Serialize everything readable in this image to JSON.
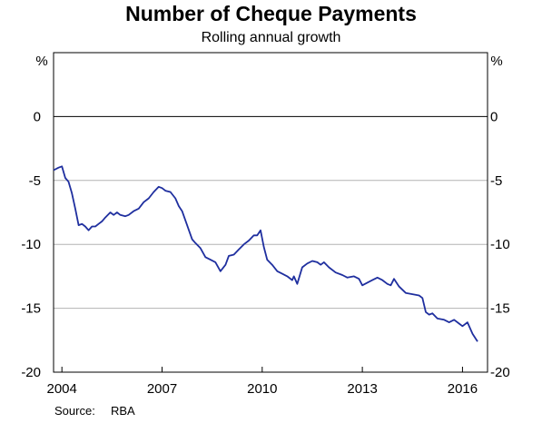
{
  "chart_data": {
    "type": "line",
    "title": "Number of Cheque Payments",
    "subtitle": "Rolling annual growth",
    "left_unit": "%",
    "right_unit": "%",
    "ylim": [
      -20,
      5
    ],
    "yticks": [
      0,
      -5,
      -10,
      -15,
      -20
    ],
    "xlim": [
      2003.75,
      2016.75
    ],
    "xticks": [
      2004,
      2007,
      2010,
      2013,
      2016
    ],
    "grid": true,
    "line_color": "#1f2f9f",
    "series": [
      {
        "x": [
          2003.75,
          2003.9,
          2004.0,
          2004.1,
          2004.2,
          2004.3,
          2004.4,
          2004.5,
          2004.6,
          2004.7,
          2004.8,
          2004.9,
          2005.0,
          2005.1,
          2005.2,
          2005.3,
          2005.45,
          2005.55,
          2005.65,
          2005.75,
          2005.9,
          2006.0,
          2006.15,
          2006.3,
          2006.45,
          2006.6,
          2006.75,
          2006.9,
          2007.0,
          2007.1,
          2007.25,
          2007.4,
          2007.5,
          2007.6,
          2007.75,
          2007.9,
          2008.0,
          2008.15,
          2008.3,
          2008.45,
          2008.6,
          2008.75,
          2008.9,
          2009.0,
          2009.15,
          2009.3,
          2009.45,
          2009.6,
          2009.75,
          2009.85,
          2009.95,
          2010.05,
          2010.15,
          2010.3,
          2010.45,
          2010.6,
          2010.75,
          2010.9,
          2010.95,
          2011.05,
          2011.2,
          2011.35,
          2011.5,
          2011.65,
          2011.75,
          2011.85,
          2012.0,
          2012.2,
          2012.4,
          2012.55,
          2012.75,
          2012.9,
          2013.0,
          2013.15,
          2013.3,
          2013.45,
          2013.6,
          2013.75,
          2013.85,
          2013.95,
          2014.1,
          2014.3,
          2014.5,
          2014.7,
          2014.8,
          2014.9,
          2015.0,
          2015.1,
          2015.25,
          2015.45,
          2015.6,
          2015.75,
          2015.9,
          2016.0,
          2016.15,
          2016.3,
          2016.45
        ],
        "y": [
          -4.2,
          -4.0,
          -3.9,
          -4.8,
          -5.1,
          -6.0,
          -7.2,
          -8.5,
          -8.4,
          -8.6,
          -8.9,
          -8.6,
          -8.6,
          -8.4,
          -8.2,
          -7.9,
          -7.5,
          -7.7,
          -7.5,
          -7.7,
          -7.8,
          -7.7,
          -7.4,
          -7.2,
          -6.7,
          -6.4,
          -5.9,
          -5.5,
          -5.6,
          -5.8,
          -5.9,
          -6.4,
          -7.0,
          -7.4,
          -8.5,
          -9.6,
          -9.9,
          -10.3,
          -11.0,
          -11.2,
          -11.4,
          -12.1,
          -11.6,
          -10.9,
          -10.8,
          -10.4,
          -10.0,
          -9.7,
          -9.3,
          -9.3,
          -8.9,
          -10.2,
          -11.2,
          -11.6,
          -12.1,
          -12.3,
          -12.5,
          -12.8,
          -12.5,
          -13.1,
          -11.8,
          -11.5,
          -11.3,
          -11.4,
          -11.6,
          -11.4,
          -11.8,
          -12.2,
          -12.4,
          -12.6,
          -12.5,
          -12.7,
          -13.2,
          -13.0,
          -12.8,
          -12.6,
          -12.8,
          -13.1,
          -13.2,
          -12.7,
          -13.3,
          -13.8,
          -13.9,
          -14.0,
          -14.2,
          -15.3,
          -15.5,
          -15.4,
          -15.8,
          -15.9,
          -16.1,
          -15.9,
          -16.2,
          -16.4,
          -16.1,
          -17.0,
          -17.6
        ]
      }
    ]
  },
  "source": {
    "label": "Source:",
    "value": "RBA"
  }
}
